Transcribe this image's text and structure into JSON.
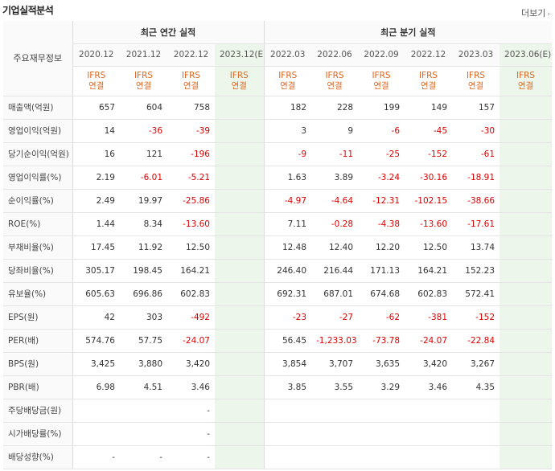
{
  "header": {
    "title": "기업실적분석",
    "more": "더보기"
  },
  "table": {
    "row_header": "주요재무정보",
    "annual_label": "최근 연간 실적",
    "quarter_label": "최근 분기 실적",
    "annual_periods": [
      "2020.12",
      "2021.12",
      "2022.12",
      "2023.12(E)"
    ],
    "quarter_periods": [
      "2022.03",
      "2022.06",
      "2022.09",
      "2022.12",
      "2023.03",
      "2023.06(E)"
    ],
    "basis_top": "IFRS",
    "basis_bottom": "연결",
    "rows": [
      {
        "label": "매출액(억원)",
        "values": [
          "657",
          "604",
          "758",
          "",
          "182",
          "228",
          "199",
          "149",
          "157",
          ""
        ]
      },
      {
        "label": "영업이익(억원)",
        "values": [
          "14",
          "-36",
          "-39",
          "",
          "3",
          "9",
          "-6",
          "-45",
          "-30",
          ""
        ]
      },
      {
        "label": "당기순이익(억원)",
        "values": [
          "16",
          "121",
          "-196",
          "",
          "-9",
          "-11",
          "-25",
          "-152",
          "-61",
          ""
        ]
      },
      {
        "label": "영업이익률(%)",
        "values": [
          "2.19",
          "-6.01",
          "-5.21",
          "",
          "1.63",
          "3.89",
          "-3.24",
          "-30.16",
          "-18.91",
          ""
        ]
      },
      {
        "label": "순이익률(%)",
        "values": [
          "2.49",
          "19.97",
          "-25.86",
          "",
          "-4.97",
          "-4.64",
          "-12.31",
          "-102.15",
          "-38.66",
          ""
        ]
      },
      {
        "label": "ROE(%)",
        "values": [
          "1.44",
          "8.34",
          "-13.60",
          "",
          "7.11",
          "-0.28",
          "-4.38",
          "-13.60",
          "-17.61",
          ""
        ]
      },
      {
        "label": "부채비율(%)",
        "values": [
          "17.45",
          "11.92",
          "12.50",
          "",
          "12.48",
          "12.40",
          "12.20",
          "12.50",
          "13.74",
          ""
        ]
      },
      {
        "label": "당좌비율(%)",
        "values": [
          "305.17",
          "198.45",
          "164.21",
          "",
          "246.40",
          "216.44",
          "171.13",
          "164.21",
          "152.23",
          ""
        ]
      },
      {
        "label": "유보율(%)",
        "values": [
          "605.63",
          "696.86",
          "602.83",
          "",
          "692.31",
          "687.01",
          "674.68",
          "602.83",
          "572.41",
          ""
        ]
      },
      {
        "label": "EPS(원)",
        "values": [
          "42",
          "303",
          "-492",
          "",
          "-23",
          "-27",
          "-62",
          "-381",
          "-152",
          ""
        ]
      },
      {
        "label": "PER(배)",
        "values": [
          "574.76",
          "57.75",
          "-24.07",
          "",
          "56.45",
          "-1,233.03",
          "-73.78",
          "-24.07",
          "-22.84",
          ""
        ]
      },
      {
        "label": "BPS(원)",
        "values": [
          "3,425",
          "3,880",
          "3,420",
          "",
          "3,854",
          "3,707",
          "3,635",
          "3,420",
          "3,267",
          ""
        ]
      },
      {
        "label": "PBR(배)",
        "values": [
          "6.98",
          "4.51",
          "3.46",
          "",
          "3.85",
          "3.55",
          "3.29",
          "3.46",
          "4.35",
          ""
        ]
      },
      {
        "label": "주당배당금(원)",
        "values": [
          "",
          "",
          "-",
          "",
          "",
          "",
          "",
          "",
          "",
          ""
        ]
      },
      {
        "label": "시가배당률(%)",
        "values": [
          "",
          "",
          "-",
          "",
          "",
          "",
          "",
          "",
          "",
          ""
        ]
      },
      {
        "label": "배당성향(%)",
        "values": [
          "-",
          "-",
          "-",
          "",
          "",
          "",
          "",
          "",
          "",
          ""
        ]
      }
    ]
  }
}
